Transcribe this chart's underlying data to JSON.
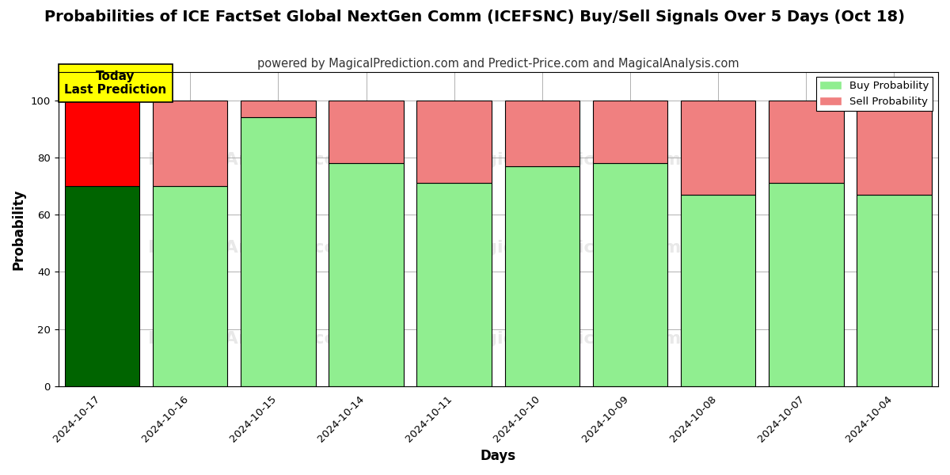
{
  "title": "Probabilities of ICE FactSet Global NextGen Comm (ICEFSNC) Buy/Sell Signals Over 5 Days (Oct 18)",
  "subtitle": "powered by MagicalPrediction.com and Predict-Price.com and MagicalAnalysis.com",
  "xlabel": "Days",
  "ylabel": "Probability",
  "dates": [
    "2024-10-17",
    "2024-10-16",
    "2024-10-15",
    "2024-10-14",
    "2024-10-11",
    "2024-10-10",
    "2024-10-09",
    "2024-10-08",
    "2024-10-07",
    "2024-10-04"
  ],
  "buy_probs": [
    70,
    70,
    94,
    78,
    71,
    77,
    78,
    67,
    71,
    67
  ],
  "sell_probs": [
    30,
    30,
    6,
    22,
    29,
    23,
    22,
    33,
    29,
    33
  ],
  "today_bar_buy_color": "#006400",
  "today_bar_sell_color": "#FF0000",
  "other_bar_buy_color": "#90EE90",
  "other_bar_sell_color": "#F08080",
  "bar_edge_color": "#000000",
  "today_annotation_bg": "#FFFF00",
  "today_annotation_text": "Today\nLast Prediction",
  "legend_buy_label": "Buy Probability",
  "legend_sell_label": "Sell Probability",
  "ylim": [
    0,
    110
  ],
  "yticks": [
    0,
    20,
    40,
    60,
    80,
    100
  ],
  "dashed_line_y": 110,
  "grid_color": "#B0B0B0",
  "background_color": "#FFFFFF",
  "title_fontsize": 14,
  "subtitle_fontsize": 10.5,
  "axis_label_fontsize": 12,
  "tick_fontsize": 9.5,
  "bar_width": 0.85
}
